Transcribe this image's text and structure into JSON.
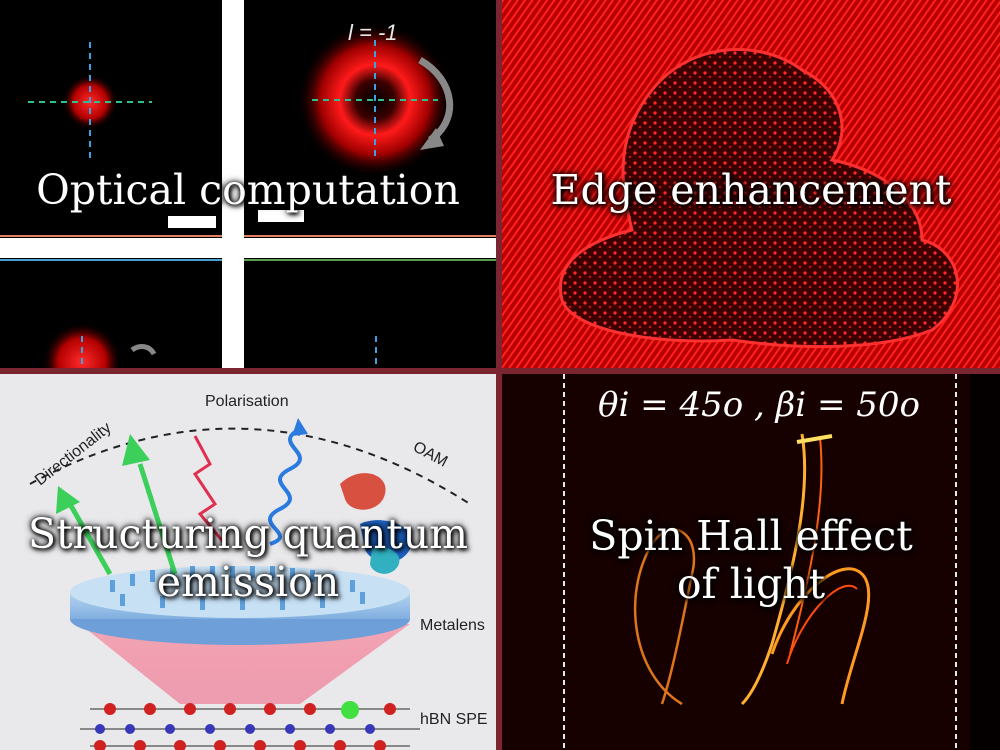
{
  "panels": {
    "optical_computation": {
      "caption": "Optical computation",
      "label_l": "l = -1"
    },
    "edge_enhancement": {
      "caption": "Edge enhancement"
    },
    "structuring_quantum_emission": {
      "caption_line1": "Structuring quantum",
      "caption_line2": "emission",
      "label_polarisation": "Polarisation",
      "label_directionality": "Directionality",
      "label_oam": "OAM",
      "label_metalens": "Metalens",
      "label_hbn": "hBN SPE"
    },
    "spin_hall_effect": {
      "caption_line1": "Spin Hall effect",
      "caption_line2": "of light",
      "equation": "θi = 45o , βi = 50o"
    }
  },
  "colors": {
    "separator": "#7a2530",
    "caption": "#ffffff"
  }
}
